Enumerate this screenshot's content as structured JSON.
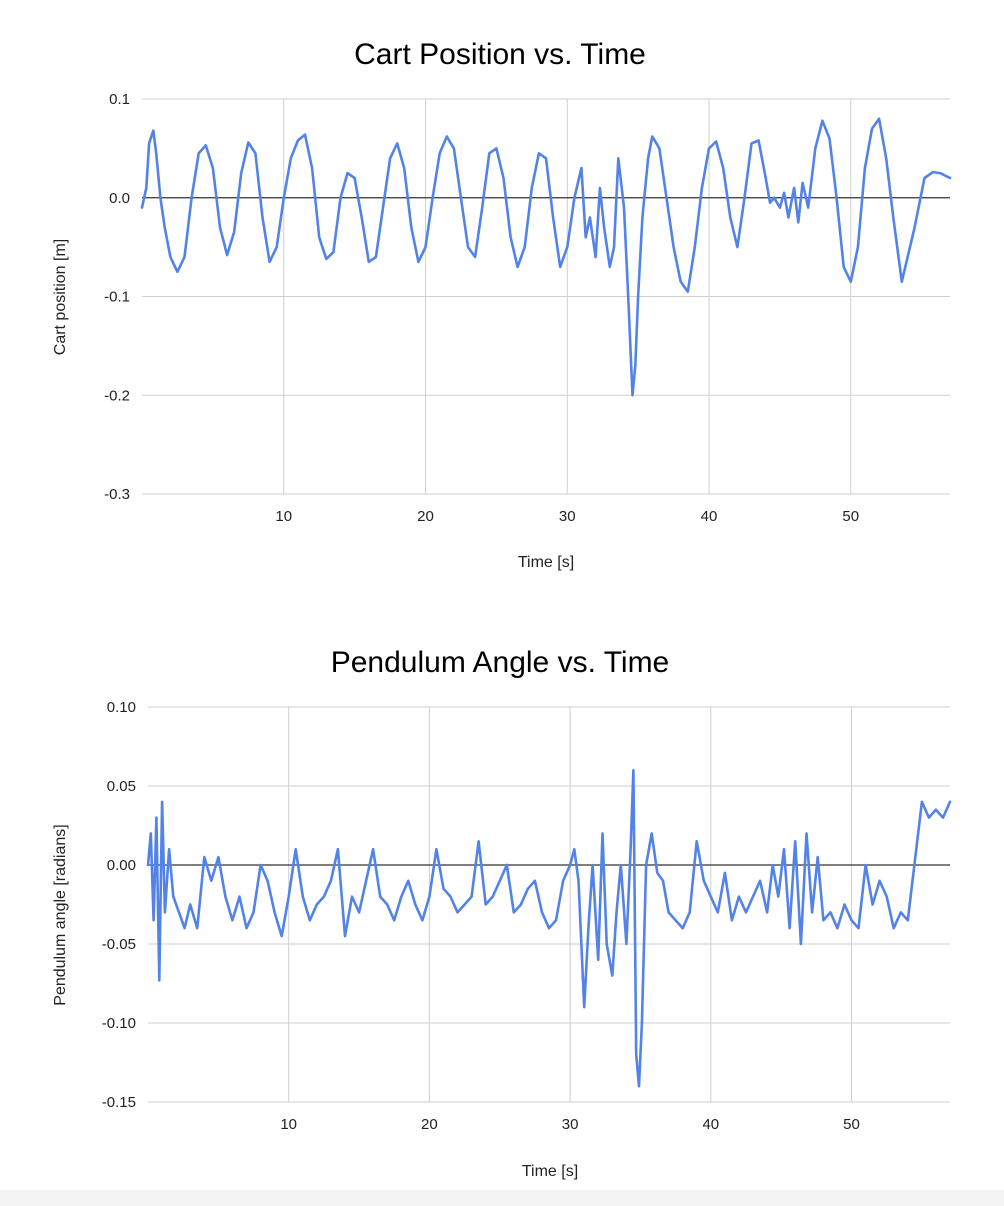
{
  "chart_data": [
    {
      "type": "line",
      "title": "Cart Position vs. Time",
      "xlabel": "Time [s]",
      "ylabel": "Cart position [m]",
      "xlim": [
        0,
        57
      ],
      "ylim": [
        -0.3,
        0.1
      ],
      "xticks": [
        10,
        20,
        30,
        40,
        50
      ],
      "xtick_labels": [
        "10",
        "20",
        "30",
        "40",
        "50"
      ],
      "yticks": [
        0.1,
        0.0,
        -0.1,
        -0.2,
        -0.3
      ],
      "ytick_labels": [
        "0.1",
        "0.0",
        "-0.1",
        "-0.2",
        "-0.3"
      ],
      "grid": true,
      "color": "#5383e8",
      "series": [
        {
          "x": [
            0,
            0.3,
            0.5,
            0.8,
            1.0,
            1.3,
            1.6,
            2.0,
            2.5,
            3.0,
            3.5,
            4.0,
            4.5,
            5.0,
            5.5,
            6.0,
            6.5,
            7.0,
            7.5,
            8.0,
            8.5,
            9.0,
            9.5,
            10.0,
            10.5,
            11.0,
            11.5,
            12.0,
            12.5,
            13.0,
            13.5,
            14.0,
            14.5,
            15.0,
            15.5,
            16.0,
            16.5,
            17.0,
            17.5,
            18.0,
            18.5,
            19.0,
            19.5,
            20.0,
            20.5,
            21.0,
            21.5,
            22.0,
            22.5,
            23.0,
            23.5,
            24.0,
            24.5,
            25.0,
            25.5,
            26.0,
            26.5,
            27.0,
            27.5,
            28.0,
            28.5,
            29.0,
            29.5,
            30.0,
            30.5,
            31.0,
            31.3,
            31.6,
            32.0,
            32.3,
            32.6,
            33.0,
            33.3,
            33.6,
            34.0,
            34.3,
            34.6,
            34.8,
            35.0,
            35.3,
            35.7,
            36.0,
            36.5,
            37.0,
            37.5,
            38.0,
            38.5,
            39.0,
            39.5,
            40.0,
            40.5,
            41.0,
            41.5,
            42.0,
            42.5,
            43.0,
            43.5,
            44.0,
            44.3,
            44.6,
            45.0,
            45.3,
            45.6,
            46.0,
            46.3,
            46.6,
            47.0,
            47.5,
            48.0,
            48.5,
            49.0,
            49.5,
            50.0,
            50.5,
            51.0,
            51.5,
            52.0,
            52.5,
            53.0,
            53.6,
            54.5,
            55.2,
            55.8,
            56.3,
            57.0
          ],
          "y": [
            -0.01,
            0.01,
            0.055,
            0.068,
            0.045,
            0.0,
            -0.03,
            -0.06,
            -0.075,
            -0.06,
            0.0,
            0.045,
            0.053,
            0.03,
            -0.03,
            -0.058,
            -0.035,
            0.025,
            0.056,
            0.045,
            -0.02,
            -0.065,
            -0.05,
            0.0,
            0.04,
            0.058,
            0.064,
            0.03,
            -0.04,
            -0.062,
            -0.055,
            0.0,
            0.025,
            0.02,
            -0.02,
            -0.065,
            -0.06,
            -0.01,
            0.04,
            0.055,
            0.03,
            -0.03,
            -0.065,
            -0.05,
            0.0,
            0.045,
            0.062,
            0.05,
            0.0,
            -0.05,
            -0.06,
            -0.01,
            0.045,
            0.05,
            0.02,
            -0.04,
            -0.07,
            -0.05,
            0.01,
            0.045,
            0.04,
            -0.02,
            -0.07,
            -0.05,
            0.0,
            0.03,
            -0.04,
            -0.02,
            -0.06,
            0.01,
            -0.03,
            -0.07,
            -0.05,
            0.04,
            -0.01,
            -0.1,
            -0.2,
            -0.17,
            -0.1,
            -0.02,
            0.04,
            0.062,
            0.05,
            0.0,
            -0.05,
            -0.085,
            -0.095,
            -0.05,
            0.01,
            0.05,
            0.057,
            0.03,
            -0.02,
            -0.05,
            0.0,
            0.055,
            0.058,
            0.02,
            -0.005,
            0.0,
            -0.01,
            0.005,
            -0.02,
            0.01,
            -0.025,
            0.015,
            -0.01,
            0.05,
            0.078,
            0.06,
            0.0,
            -0.07,
            -0.085,
            -0.05,
            0.03,
            0.07,
            0.08,
            0.04,
            -0.02,
            -0.085,
            -0.03,
            0.02,
            0.026,
            0.025,
            0.02
          ]
        }
      ]
    },
    {
      "type": "line",
      "title": "Pendulum Angle vs. Time",
      "xlabel": "Time [s]",
      "ylabel": "Pendulum angle [radians]",
      "xlim": [
        0,
        57
      ],
      "ylim": [
        -0.15,
        0.1
      ],
      "xticks": [
        10,
        20,
        30,
        40,
        50
      ],
      "xtick_labels": [
        "10",
        "20",
        "30",
        "40",
        "50"
      ],
      "yticks": [
        0.1,
        0.05,
        0.0,
        -0.05,
        -0.1,
        -0.15
      ],
      "ytick_labels": [
        "0.10",
        "0.05",
        "0.00",
        "-0.05",
        "-0.10",
        "-0.15"
      ],
      "grid": true,
      "color": "#5383e8",
      "series": [
        {
          "x": [
            0,
            0.2,
            0.4,
            0.6,
            0.8,
            1.0,
            1.2,
            1.5,
            1.8,
            2.2,
            2.6,
            3.0,
            3.5,
            4.0,
            4.5,
            5.0,
            5.5,
            6.0,
            6.5,
            7.0,
            7.5,
            8.0,
            8.5,
            9.0,
            9.5,
            10.0,
            10.5,
            11.0,
            11.5,
            12.0,
            12.5,
            13.0,
            13.5,
            14.0,
            14.5,
            15.0,
            15.5,
            16.0,
            16.5,
            17.0,
            17.5,
            18.0,
            18.5,
            19.0,
            19.5,
            20.0,
            20.5,
            21.0,
            21.5,
            22.0,
            22.5,
            23.0,
            23.5,
            24.0,
            24.5,
            25.0,
            25.5,
            26.0,
            26.5,
            27.0,
            27.5,
            28.0,
            28.5,
            29.0,
            29.5,
            30.0,
            30.3,
            30.6,
            31.0,
            31.3,
            31.6,
            32.0,
            32.3,
            32.6,
            33.0,
            33.3,
            33.6,
            34.0,
            34.3,
            34.5,
            34.7,
            34.9,
            35.1,
            35.4,
            35.8,
            36.2,
            36.6,
            37.0,
            37.5,
            38.0,
            38.5,
            39.0,
            39.5,
            40.0,
            40.5,
            41.0,
            41.5,
            42.0,
            42.5,
            43.0,
            43.5,
            44.0,
            44.4,
            44.8,
            45.2,
            45.6,
            46.0,
            46.4,
            46.8,
            47.2,
            47.6,
            48.0,
            48.5,
            49.0,
            49.5,
            50.0,
            50.5,
            51.0,
            51.5,
            52.0,
            52.5,
            53.0,
            53.5,
            54.0,
            55.0,
            55.5,
            56.0,
            56.5,
            57.0
          ],
          "y": [
            0.0,
            0.02,
            -0.035,
            0.03,
            -0.073,
            0.04,
            -0.03,
            0.01,
            -0.02,
            -0.03,
            -0.04,
            -0.025,
            -0.04,
            0.005,
            -0.01,
            0.005,
            -0.02,
            -0.035,
            -0.02,
            -0.04,
            -0.03,
            0.0,
            -0.01,
            -0.03,
            -0.045,
            -0.02,
            0.01,
            -0.02,
            -0.035,
            -0.025,
            -0.02,
            -0.01,
            0.01,
            -0.045,
            -0.02,
            -0.03,
            -0.01,
            0.01,
            -0.02,
            -0.025,
            -0.035,
            -0.02,
            -0.01,
            -0.025,
            -0.035,
            -0.02,
            0.01,
            -0.015,
            -0.02,
            -0.03,
            -0.025,
            -0.02,
            0.015,
            -0.025,
            -0.02,
            -0.01,
            0.0,
            -0.03,
            -0.025,
            -0.015,
            -0.01,
            -0.03,
            -0.04,
            -0.035,
            -0.01,
            0.0,
            0.01,
            -0.01,
            -0.09,
            -0.04,
            0.0,
            -0.06,
            0.02,
            -0.05,
            -0.07,
            -0.03,
            0.0,
            -0.05,
            0.01,
            0.06,
            -0.12,
            -0.14,
            -0.1,
            0.0,
            0.02,
            -0.005,
            -0.01,
            -0.03,
            -0.035,
            -0.04,
            -0.03,
            0.015,
            -0.01,
            -0.02,
            -0.03,
            -0.005,
            -0.035,
            -0.02,
            -0.03,
            -0.02,
            -0.01,
            -0.03,
            0.0,
            -0.02,
            0.01,
            -0.04,
            0.015,
            -0.05,
            0.02,
            -0.03,
            0.005,
            -0.035,
            -0.03,
            -0.04,
            -0.025,
            -0.035,
            -0.04,
            0.0,
            -0.025,
            -0.01,
            -0.02,
            -0.04,
            -0.03,
            -0.035,
            0.04,
            0.03,
            0.035,
            0.03,
            0.04
          ]
        }
      ]
    }
  ]
}
